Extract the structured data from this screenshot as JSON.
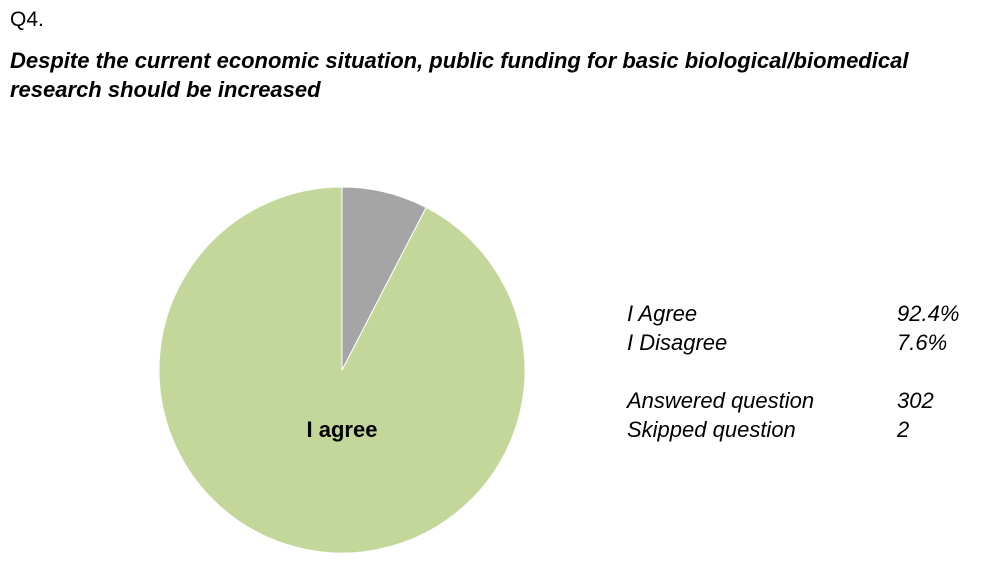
{
  "question": "Q4.",
  "chart_data": {
    "type": "pie",
    "title": "Despite the current economic situation, public funding for basic biological/biomedical research should be increased",
    "categories": [
      "I Agree",
      "I Disagree"
    ],
    "values": [
      92.4,
      7.6
    ],
    "value_labels": [
      "92.4%",
      "7.6%"
    ],
    "colors": [
      "#c4d79b",
      "#a5a5a5"
    ],
    "slice_labels": [
      "I agree",
      null
    ]
  },
  "stats": [
    {
      "label": "Answered question",
      "value": 302
    },
    {
      "label": "Skipped question",
      "value": 2
    }
  ]
}
